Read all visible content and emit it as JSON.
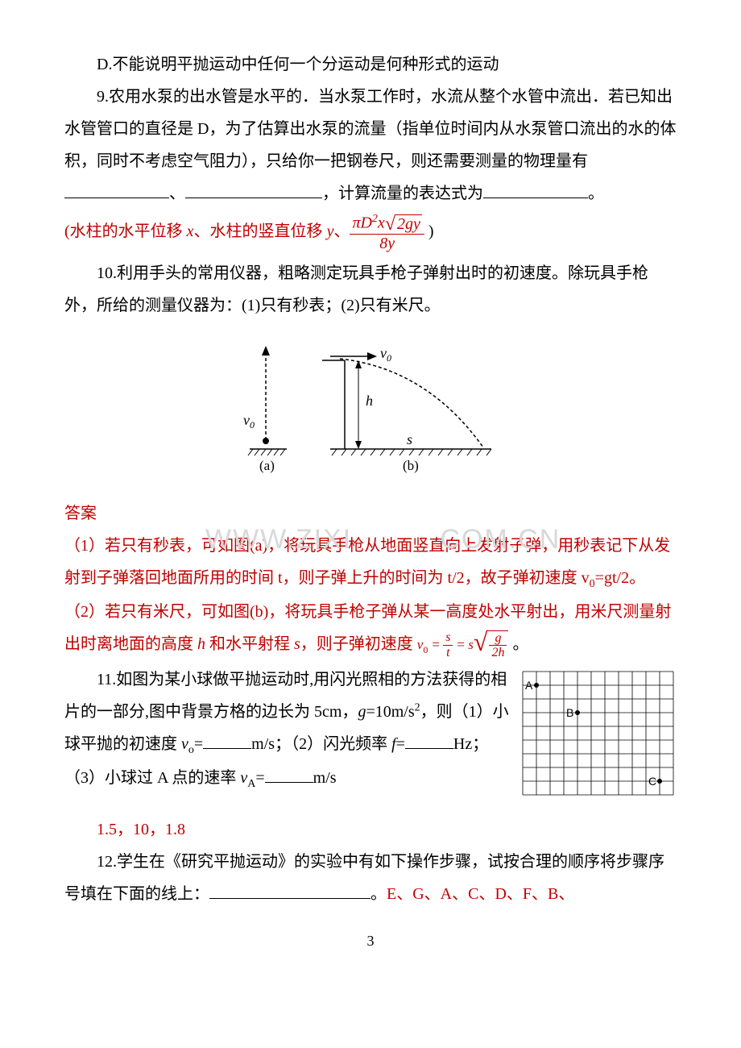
{
  "q8d": "D.不能说明平抛运动中任何一个分运动是何种形式的运动",
  "q9": {
    "text1": "9.农用水泵的出水管是水平的．当水泵工作时，水流从整个水管中流出．若已知出水管管口的直径是 D，为了估算出水泵的流量（指单位时间内从水泵管口流出的水的体积，同时不考虑空气阻力），只给你一把钢卷尺，则还需要测量的物理量有",
    "tail": "，计算流量的表达式为",
    "end": "。",
    "ans_prefix": "(",
    "ans1": "水柱的水平位移 ",
    "ans_x": "x",
    "ans2": "、水柱的竖直位移 ",
    "ans_y": "y",
    "ans3": "、",
    "frac_num_pref": "πD",
    "frac_num_x": "x",
    "frac_rad": "2gy",
    "frac_den": "8y",
    "ans_suffix": ")"
  },
  "q10": {
    "text": "10.利用手头的常用仪器，粗略测定玩具手枪子弹射出时的初速度。除玩具手枪外，所给的测量仪器为：(1)只有秒表；(2)只有米尺。"
  },
  "fig": {
    "v0": "v",
    "v0sub": "0",
    "h": "h",
    "s": "s",
    "a": "(a)",
    "b": "(b)"
  },
  "answer_label": "答案",
  "ans1": {
    "p1": "（1）若只有秒表，可如图(a)，将玩具手枪从地面竖直向上发射子弹，用秒表记下从发射到子弹落回地面所用的时间 t，则子弹上升的时间为 t/2，故子弹初速度 v",
    "p1b": "=gt/2。",
    "p2": "（2）若只有米尺，可如图(b)，将玩具手枪子弹从某一高度处水平射出，用米尺测量射出时离地面的高度 ",
    "h": "h",
    "p2b": " 和水平射程 ",
    "s": "s",
    "p2c": "，则子弹初速度",
    "eq_v0": "v",
    "frac1_num": "s",
    "frac1_den": "t",
    "frac2_num": "g",
    "frac2_den": "2h",
    "period": "。"
  },
  "q11": {
    "text1": "11.如图为某小球做平抛运动时,用闪光照相的方法获得的相片的一部分,图中背景方格的边长为 5cm，",
    "g": "g",
    "text1b": "=10m/s",
    "text1c": "，则（1）小球平抛的初速度 ",
    "vo": "v",
    "vo_sub": "o",
    "text2": "=",
    "unit1": "m/s；（2）闪光频率 ",
    "f": "f",
    "text3": "=",
    "unit2": "Hz；（3）小球过 A 点的速率 ",
    "va": "v",
    "va_sub": "A",
    "text4": "=",
    "unit3": "m/s",
    "answers": "1.5，10，1.8"
  },
  "q12": {
    "text1": "12.学生在《研究平抛运动》的实验中有如下操作步骤，试按合理的顺序将步骤序号填在下面的线上：",
    "end": "。",
    "ans": "E、G、A、C、D、F、B、"
  },
  "grid": {
    "A": "A",
    "B": "B",
    "C": "C",
    "cell": 17,
    "cols": 11,
    "rows": 9,
    "line_color": "#000000",
    "dot_color": "#000000",
    "A_pos": [
      1,
      1
    ],
    "B_pos": [
      4,
      3
    ],
    "C_pos": [
      10,
      8
    ]
  },
  "watermark1": "WWW.ZIXI",
  "watermark2": ".COM.CN",
  "page": "3"
}
